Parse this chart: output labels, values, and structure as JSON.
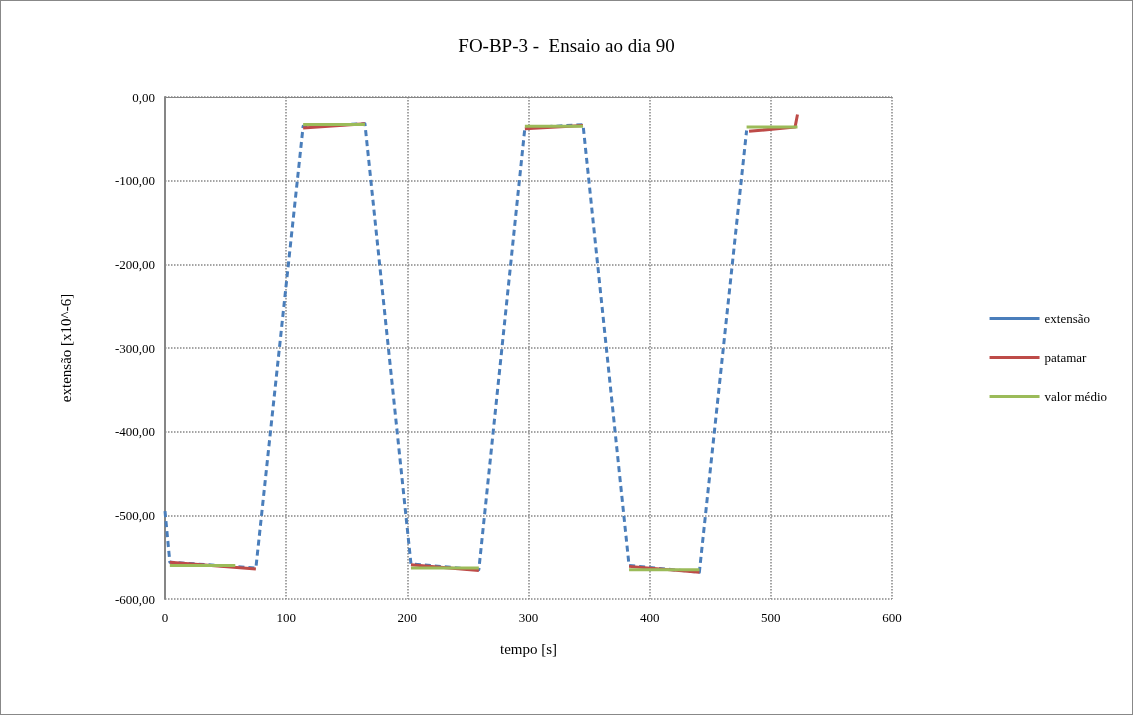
{
  "chart_data": {
    "type": "line",
    "title": "FO-BP-3 -  Ensaio ao dia 90",
    "xlabel": "tempo [s]",
    "ylabel": "extensão [x10^-6]",
    "xlim": [
      0,
      600
    ],
    "xticks": [
      0,
      100,
      200,
      300,
      400,
      500,
      600
    ],
    "ylim": [
      -600,
      0
    ],
    "yticks": [
      {
        "value": -600,
        "label": "-600,00"
      },
      {
        "value": -500,
        "label": "-500,00"
      },
      {
        "value": -400,
        "label": "-400,00"
      },
      {
        "value": -300,
        "label": "-300,00"
      },
      {
        "value": -200,
        "label": "-200,00"
      },
      {
        "value": -100,
        "label": "-100,00"
      },
      {
        "value": 0,
        "label": "0,00"
      }
    ],
    "grid": true,
    "legend": "right",
    "marker": "none",
    "series": [
      {
        "name": "extensão",
        "color": "#4a7ebb",
        "line_style": "dashed",
        "x": [
          0,
          4,
          75,
          114,
          165,
          203,
          259,
          297,
          345,
          383,
          441,
          480
        ],
        "values": [
          -495,
          -556,
          -563,
          -35,
          -32,
          -558,
          -565,
          -37,
          -33,
          -560,
          -568,
          -40
        ]
      },
      {
        "name": "patamar",
        "color": "#be4b48",
        "line_style": "solid",
        "x": [
          4,
          75,
          90,
          114,
          165,
          185,
          203,
          259,
          280,
          297,
          345,
          365,
          383,
          441,
          460,
          482,
          520,
          522
        ],
        "values": [
          -556,
          -564,
          null,
          -37,
          -32,
          null,
          -559,
          -566,
          null,
          -38,
          -34,
          null,
          -561,
          -568,
          null,
          -41,
          -36,
          -21
        ]
      },
      {
        "name": "valor médio",
        "color": "#9bbb59",
        "line_style": "solid",
        "x": [
          4,
          58,
          90,
          114,
          165,
          185,
          203,
          259,
          280,
          297,
          345,
          365,
          383,
          441,
          460,
          480,
          522
        ],
        "values": [
          -560,
          -560,
          null,
          -33,
          -33,
          null,
          -563,
          -563,
          null,
          -35,
          -35,
          null,
          -565,
          -565,
          null,
          -36,
          -36
        ]
      }
    ]
  }
}
